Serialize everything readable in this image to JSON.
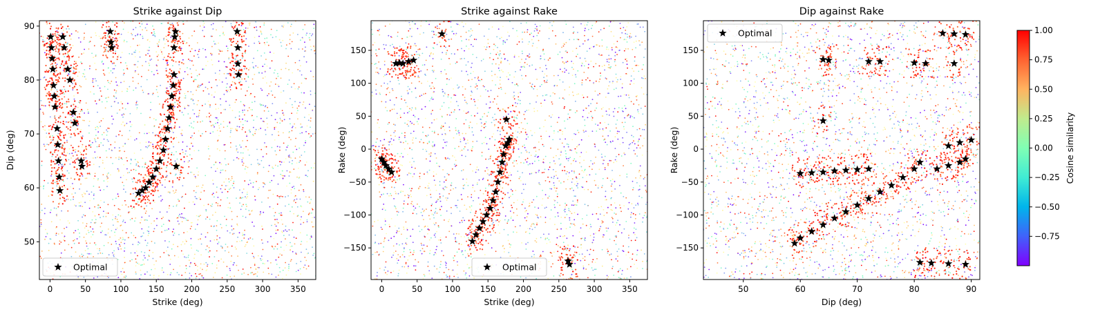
{
  "chart_data": [
    {
      "type": "scatter",
      "title": "Strike against Dip",
      "xlabel": "Strike (deg)",
      "ylabel": "Dip (deg)",
      "xlim": [
        -15,
        375
      ],
      "ylim": [
        43,
        91
      ],
      "xticks": [
        0,
        50,
        100,
        150,
        200,
        250,
        300,
        350
      ],
      "yticks": [
        50,
        60,
        70,
        80,
        90
      ],
      "legend": {
        "label": "Optimal",
        "loc": "lower left"
      },
      "optimal_points": [
        [
          1,
          88
        ],
        [
          2,
          86
        ],
        [
          3,
          84
        ],
        [
          4,
          82
        ],
        [
          5,
          79
        ],
        [
          6,
          77
        ],
        [
          7,
          75
        ],
        [
          10,
          71
        ],
        [
          11,
          68
        ],
        [
          12,
          65
        ],
        [
          13,
          62
        ],
        [
          14,
          59.5
        ],
        [
          18,
          88
        ],
        [
          20,
          86
        ],
        [
          25,
          82
        ],
        [
          28,
          80
        ],
        [
          33,
          74
        ],
        [
          35,
          72
        ],
        [
          44,
          65
        ],
        [
          45,
          64
        ],
        [
          85,
          89
        ],
        [
          86,
          87
        ],
        [
          87,
          86
        ],
        [
          125,
          59
        ],
        [
          130,
          59.5
        ],
        [
          135,
          60
        ],
        [
          140,
          61
        ],
        [
          145,
          62
        ],
        [
          150,
          63.5
        ],
        [
          155,
          65
        ],
        [
          160,
          67
        ],
        [
          163,
          69
        ],
        [
          166,
          71
        ],
        [
          168,
          73
        ],
        [
          170,
          75
        ],
        [
          172,
          77
        ],
        [
          174,
          79
        ],
        [
          175,
          81
        ],
        [
          175,
          86
        ],
        [
          176,
          88
        ],
        [
          177,
          89
        ],
        [
          178,
          64
        ],
        [
          264,
          89
        ],
        [
          265,
          86
        ],
        [
          265,
          83
        ],
        [
          266,
          81
        ]
      ]
    },
    {
      "type": "scatter",
      "title": "Strike against Rake",
      "xlabel": "Strike (deg)",
      "ylabel": "Rake (deg)",
      "xlim": [
        -15,
        375
      ],
      "ylim": [
        -198,
        195
      ],
      "xticks": [
        0,
        50,
        100,
        150,
        200,
        250,
        300,
        350
      ],
      "yticks": [
        -150,
        -100,
        -50,
        0,
        50,
        100,
        150
      ],
      "legend": {
        "label": "Optimal",
        "loc": "lower center"
      },
      "optimal_points": [
        [
          0,
          -15
        ],
        [
          3,
          -20
        ],
        [
          6,
          -25
        ],
        [
          10,
          -30
        ],
        [
          14,
          -35
        ],
        [
          20,
          130
        ],
        [
          25,
          131
        ],
        [
          30,
          130
        ],
        [
          38,
          133
        ],
        [
          45,
          135
        ],
        [
          85,
          175
        ],
        [
          128,
          -140
        ],
        [
          133,
          -130
        ],
        [
          138,
          -120
        ],
        [
          143,
          -110
        ],
        [
          148,
          -100
        ],
        [
          153,
          -90
        ],
        [
          157,
          -78
        ],
        [
          161,
          -65
        ],
        [
          164,
          -50
        ],
        [
          167,
          -35
        ],
        [
          170,
          -20
        ],
        [
          172,
          -8
        ],
        [
          175,
          5
        ],
        [
          178,
          10
        ],
        [
          180,
          15
        ],
        [
          176,
          45
        ],
        [
          263,
          -170
        ],
        [
          265,
          -175
        ]
      ]
    },
    {
      "type": "scatter",
      "title": "Dip against Rake",
      "xlabel": "Dip (deg)",
      "ylabel": "Rake (deg)",
      "xlim": [
        43,
        91.5
      ],
      "ylim": [
        -198,
        195
      ],
      "xticks": [
        50,
        60,
        70,
        80,
        90
      ],
      "yticks": [
        -150,
        -100,
        -50,
        0,
        50,
        100,
        150
      ],
      "legend": {
        "label": "Optimal",
        "loc": "upper left"
      },
      "optimal_points": [
        [
          59,
          -143
        ],
        [
          60,
          -135
        ],
        [
          62,
          -125
        ],
        [
          64,
          -115
        ],
        [
          66,
          -105
        ],
        [
          68,
          -95
        ],
        [
          70,
          -85
        ],
        [
          72,
          -75
        ],
        [
          74,
          -65
        ],
        [
          76,
          -55
        ],
        [
          78,
          -43
        ],
        [
          80,
          -30
        ],
        [
          81,
          -20
        ],
        [
          60,
          -37
        ],
        [
          62,
          -36
        ],
        [
          64,
          -35
        ],
        [
          66,
          -33
        ],
        [
          68,
          -32
        ],
        [
          70,
          -31
        ],
        [
          72,
          -30
        ],
        [
          84,
          -30
        ],
        [
          86,
          -25
        ],
        [
          88,
          -20
        ],
        [
          89,
          -15
        ],
        [
          64,
          136
        ],
        [
          65,
          135
        ],
        [
          72,
          133
        ],
        [
          74,
          133
        ],
        [
          80,
          131
        ],
        [
          82,
          130
        ],
        [
          87,
          130
        ],
        [
          85,
          176
        ],
        [
          87,
          175
        ],
        [
          89,
          174
        ],
        [
          64,
          43
        ],
        [
          86,
          5
        ],
        [
          88,
          10
        ],
        [
          90,
          14
        ],
        [
          81,
          -172
        ],
        [
          83,
          -173
        ],
        [
          86,
          -174
        ],
        [
          89,
          -175
        ]
      ]
    }
  ],
  "colorbar": {
    "label": "Cosine similarity",
    "ticks": [
      1.0,
      0.75,
      0.5,
      0.25,
      0.0,
      -0.25,
      -0.5,
      -0.75
    ],
    "tick_labels": [
      "1.00",
      "0.75",
      "0.50",
      "0.25",
      "0.00",
      "−0.25",
      "−0.50",
      "−0.75"
    ],
    "range": [
      -1.0,
      1.0
    ],
    "colormap": "rainbow"
  },
  "colors": {
    "optimal_marker": "#000000",
    "high_similarity": "#ff0000"
  }
}
